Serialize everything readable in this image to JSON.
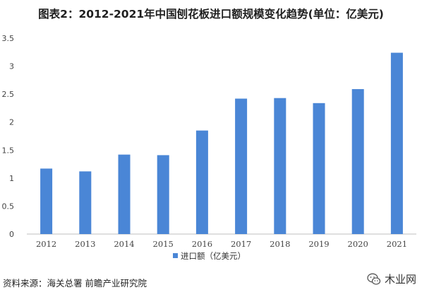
{
  "title": "图表2：2012-2021年中国刨花板进口额规模变化趋势(单位：亿美元)",
  "chart_data": {
    "type": "bar",
    "categories": [
      "2012",
      "2013",
      "2014",
      "2015",
      "2016",
      "2017",
      "2018",
      "2019",
      "2020",
      "2021"
    ],
    "series": [
      {
        "name": "进口额（亿美元）",
        "color": "#4a86d6",
        "values": [
          1.17,
          1.12,
          1.42,
          1.41,
          1.85,
          2.42,
          2.43,
          2.34,
          2.59,
          3.24
        ]
      }
    ],
    "yticks": [
      "0",
      "0.5",
      "1",
      "1.5",
      "2",
      "2.5",
      "3",
      "3.5"
    ],
    "ylim": [
      0,
      3.5
    ],
    "grid": false,
    "legend_position": "bottom-center"
  },
  "source": "资料来源：海关总署 前瞻产业研究院",
  "watermark": {
    "icon": "wechat-icon",
    "text": "木业网"
  }
}
